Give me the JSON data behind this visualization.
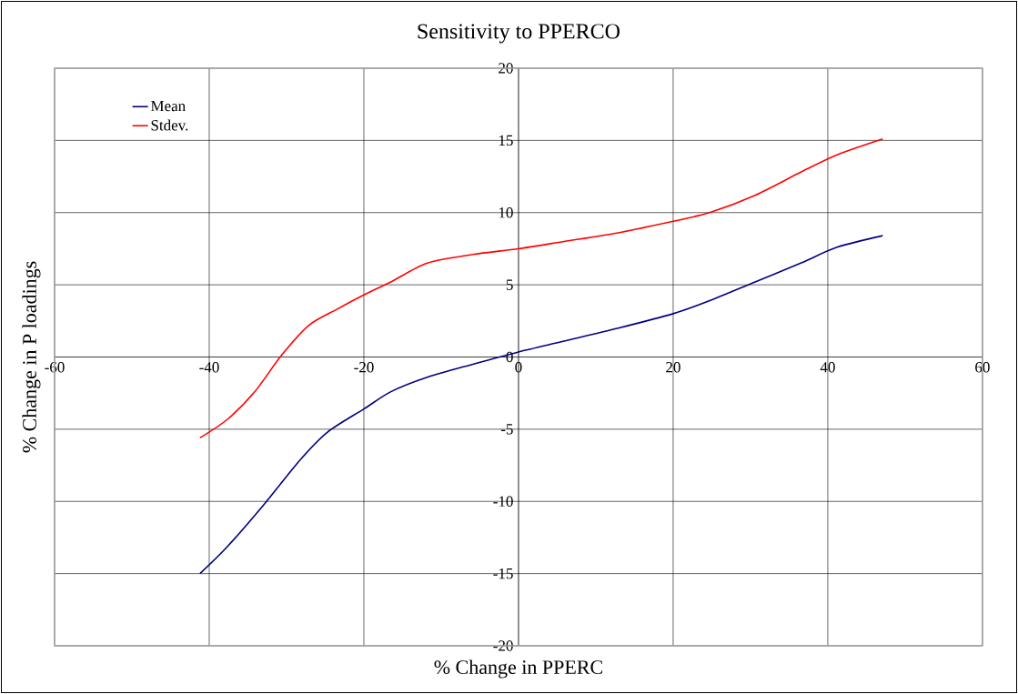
{
  "chart_data": {
    "type": "line",
    "title": "Sensitivity to PPERCO",
    "xlabel": "% Change in PPERC",
    "ylabel": "% Change in P loadings",
    "xlim": [
      -60,
      60
    ],
    "xticks": [
      -60,
      -40,
      -20,
      0,
      20,
      40,
      60
    ],
    "ylim": [
      -20,
      20
    ],
    "yticks": [
      -20,
      -15,
      -10,
      -5,
      0,
      5,
      10,
      15,
      20
    ],
    "grid": true,
    "legend": "top left",
    "marker": "none",
    "line_style": "solid",
    "series": [
      {
        "name": "Mean",
        "color": "#000080",
        "x": [
          -41.2,
          -37.6,
          -32.9,
          -28.2,
          -24.7,
          -20,
          -16.5,
          -11.8,
          -5.9,
          0,
          5.9,
          12.9,
          20,
          24.7,
          30.6,
          36.5,
          41.2,
          47.1
        ],
        "values": [
          -15,
          -13.1,
          -10.2,
          -7.1,
          -5.2,
          -3.6,
          -2.4,
          -1.4,
          -0.5,
          0.35,
          1.1,
          2.0,
          3.0,
          3.9,
          5.2,
          6.5,
          7.6,
          8.4
        ]
      },
      {
        "name": "Stdev.",
        "color": "#ff0000",
        "x": [
          -41.2,
          -37.6,
          -34.1,
          -30.6,
          -27.1,
          -23.5,
          -20,
          -16.5,
          -11.8,
          -5.9,
          0,
          5.9,
          12.9,
          20,
          24.7,
          30.6,
          36.5,
          41.2,
          47.1
        ],
        "values": [
          -5.6,
          -4.3,
          -2.4,
          0.15,
          2.2,
          3.3,
          4.3,
          5.2,
          6.5,
          7.1,
          7.5,
          8.0,
          8.6,
          9.4,
          10.0,
          11.2,
          12.8,
          14.0,
          15.1
        ]
      }
    ]
  }
}
